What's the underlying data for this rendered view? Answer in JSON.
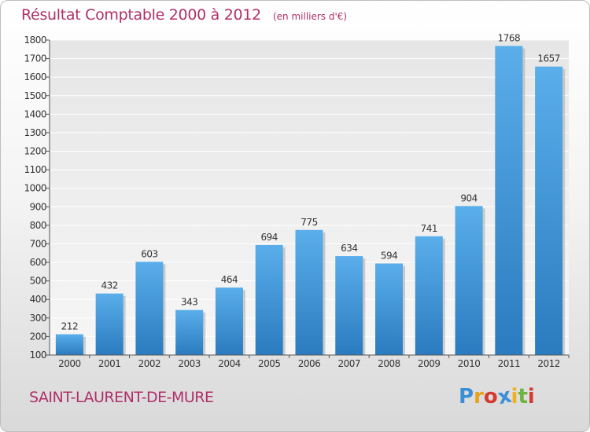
{
  "header": {
    "title": "Résultat Comptable 2000 à 2012",
    "subtitle": "(en milliers d'€)"
  },
  "footer": {
    "city": "SAINT-LAURENT-DE-MURE",
    "logo_text": "Proxiti",
    "logo_letters": [
      "P",
      "r",
      "o",
      "x",
      "i",
      "t",
      "i"
    ],
    "logo_colors": [
      "#3b8fd6",
      "#e8a21a",
      "#d43a2f",
      "#3b8fd6",
      "#f2b01e",
      "#6cb33f",
      "#d43a2f"
    ]
  },
  "colors": {
    "accent": "#b0306a",
    "bar_top": "#5aaeea",
    "bar_bottom": "#2a7bbf"
  },
  "chart_data": {
    "type": "bar",
    "categories": [
      "2000",
      "2001",
      "2002",
      "2003",
      "2004",
      "2005",
      "2006",
      "2007",
      "2008",
      "2009",
      "2010",
      "2011",
      "2012"
    ],
    "values": [
      212,
      432,
      603,
      343,
      464,
      694,
      775,
      634,
      594,
      741,
      904,
      1768,
      1657
    ],
    "ylim": [
      100,
      1800
    ],
    "yticks": [
      100,
      200,
      300,
      400,
      500,
      600,
      700,
      800,
      900,
      1000,
      1100,
      1200,
      1300,
      1400,
      1500,
      1600,
      1700,
      1800
    ],
    "grid": true,
    "data_labels": true
  }
}
